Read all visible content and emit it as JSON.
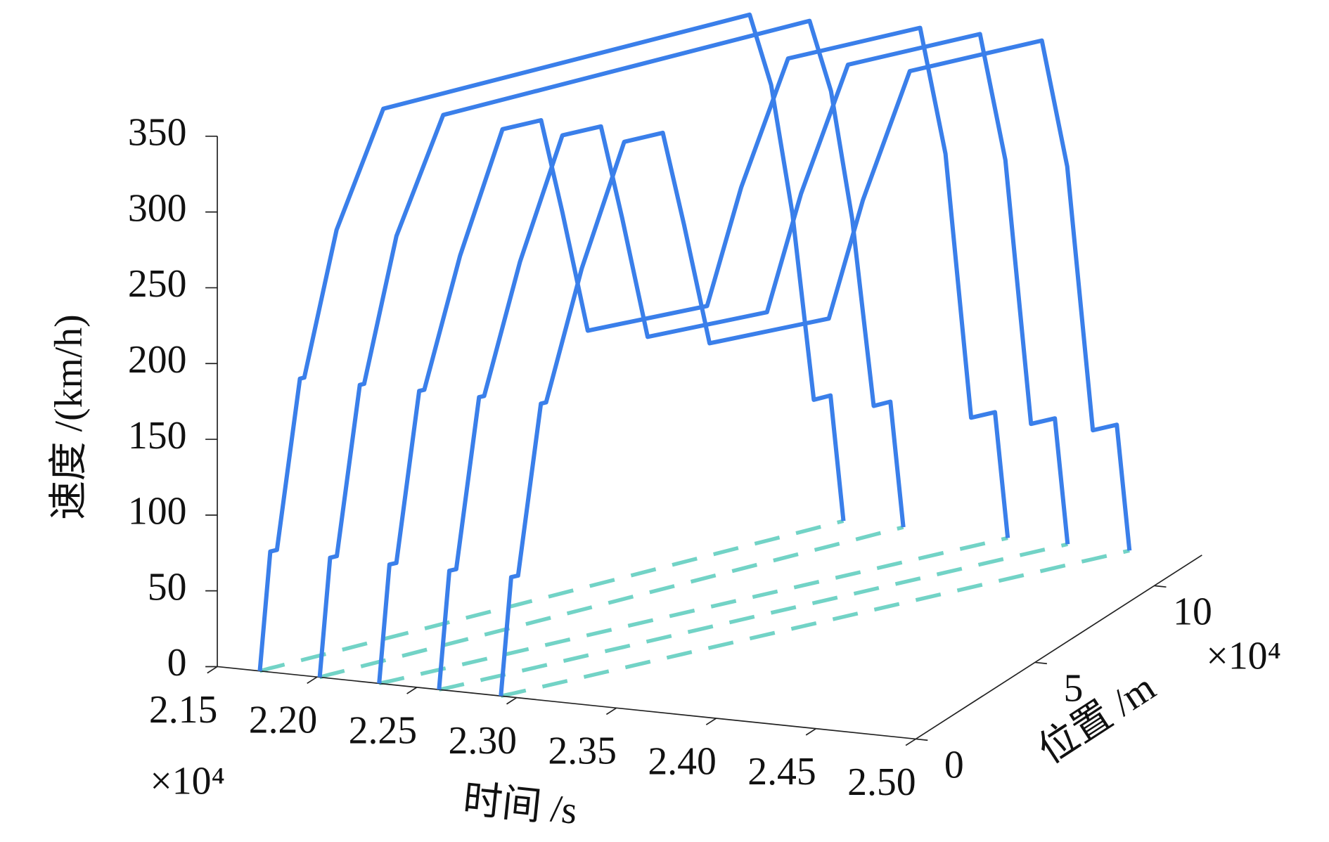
{
  "chart_data": {
    "type": "line3d",
    "xlabel": "时间 /s",
    "ylabel": "位置 /m",
    "zlabel": "速度 /(km/h)",
    "x_multiplier": "×10⁴",
    "y_multiplier": "×10⁴",
    "xlim": [
      2.15,
      2.5
    ],
    "xticks": [
      2.15,
      {
        "value": 2.2,
        "label": "2.20"
      },
      2.25,
      {
        "value": 2.3,
        "label": "2.30"
      },
      2.35,
      {
        "value": 2.4,
        "label": "2.40"
      },
      2.45,
      {
        "value": 2.5,
        "label": "2.50"
      }
    ],
    "ylim": [
      0,
      12
    ],
    "yticks": [
      0,
      5,
      10
    ],
    "zlim": [
      0,
      350
    ],
    "zticks": [
      0,
      50,
      100,
      150,
      200,
      250,
      300,
      350
    ],
    "color": "#3a7fea",
    "projection_color": "#72d3c6",
    "projection": true,
    "series": [
      {
        "x": [
          2.1713,
          2.1739,
          2.1757,
          2.1816,
          2.1827,
          2.1911,
          2.2032,
          2.2981,
          2.3037,
          2.3092,
          2.3147,
          2.319,
          2.3224
        ],
        "y": [
          0,
          0.22,
          0.35,
          0.82,
          0.91,
          1.56,
          2.51,
          9.93,
          10.36,
          10.79,
          11.23,
          11.57,
          11.83
        ],
        "z": [
          0,
          77,
          77,
          186,
          186,
          278,
          350,
          350,
          300,
          212,
          85,
          85,
          0
        ]
      },
      {
        "x": [
          2.2013,
          2.2039,
          2.2057,
          2.2116,
          2.2127,
          2.2211,
          2.2332,
          2.3281,
          2.3337,
          2.3392,
          2.3447,
          2.349,
          2.3524
        ],
        "y": [
          0,
          0.22,
          0.35,
          0.82,
          0.91,
          1.56,
          2.51,
          9.93,
          10.36,
          10.79,
          11.23,
          11.57,
          11.83
        ],
        "z": [
          0,
          77,
          77,
          186,
          186,
          278,
          350,
          350,
          300,
          212,
          85,
          85,
          0
        ]
      },
      {
        "x": [
          2.2311,
          2.2341,
          2.236,
          2.2423,
          2.2437,
          2.2536,
          2.2653,
          2.2759,
          2.2818,
          2.2888,
          2.3217,
          2.3311,
          2.3441,
          2.3805,
          2.3875,
          2.3946,
          2.4012,
          2.4047
        ],
        "y": [
          0,
          0.18,
          0.31,
          0.74,
          0.84,
          1.51,
          2.31,
          3.04,
          3.44,
          3.92,
          6.17,
          6.81,
          7.69,
          10.18,
          10.66,
          11.14,
          11.59,
          11.83
        ],
        "z": [
          0,
          77,
          77,
          187,
          187,
          270,
          347,
          347,
          283,
          201,
          199,
          272,
          350,
          350,
          263,
          85,
          85,
          0
        ]
      },
      {
        "x": [
          2.2611,
          2.2641,
          2.266,
          2.2723,
          2.2737,
          2.2836,
          2.2953,
          2.3059,
          2.3118,
          2.3188,
          2.3517,
          2.3611,
          2.3741,
          2.4105,
          2.4175,
          2.4246,
          2.4312,
          2.4347
        ],
        "y": [
          0,
          0.18,
          0.31,
          0.74,
          0.84,
          1.51,
          2.31,
          3.04,
          3.44,
          3.92,
          6.17,
          6.81,
          7.69,
          10.18,
          10.66,
          11.14,
          11.59,
          11.83
        ],
        "z": [
          0,
          77,
          77,
          187,
          187,
          270,
          347,
          347,
          283,
          201,
          199,
          272,
          350,
          350,
          263,
          85,
          85,
          0
        ]
      },
      {
        "x": [
          2.2921,
          2.2951,
          2.297,
          2.3033,
          2.3047,
          2.3146,
          2.3263,
          2.3369,
          2.3428,
          2.3498,
          2.3827,
          2.3921,
          2.4051,
          2.4415,
          2.4485,
          2.4556,
          2.4622,
          2.4657
        ],
        "y": [
          0,
          0.18,
          0.31,
          0.74,
          0.84,
          1.51,
          2.31,
          3.04,
          3.44,
          3.92,
          6.17,
          6.81,
          7.69,
          10.18,
          10.66,
          11.14,
          11.59,
          11.83
        ],
        "z": [
          0,
          77,
          77,
          187,
          187,
          270,
          347,
          347,
          283,
          201,
          199,
          272,
          350,
          350,
          263,
          85,
          85,
          0
        ]
      }
    ]
  }
}
